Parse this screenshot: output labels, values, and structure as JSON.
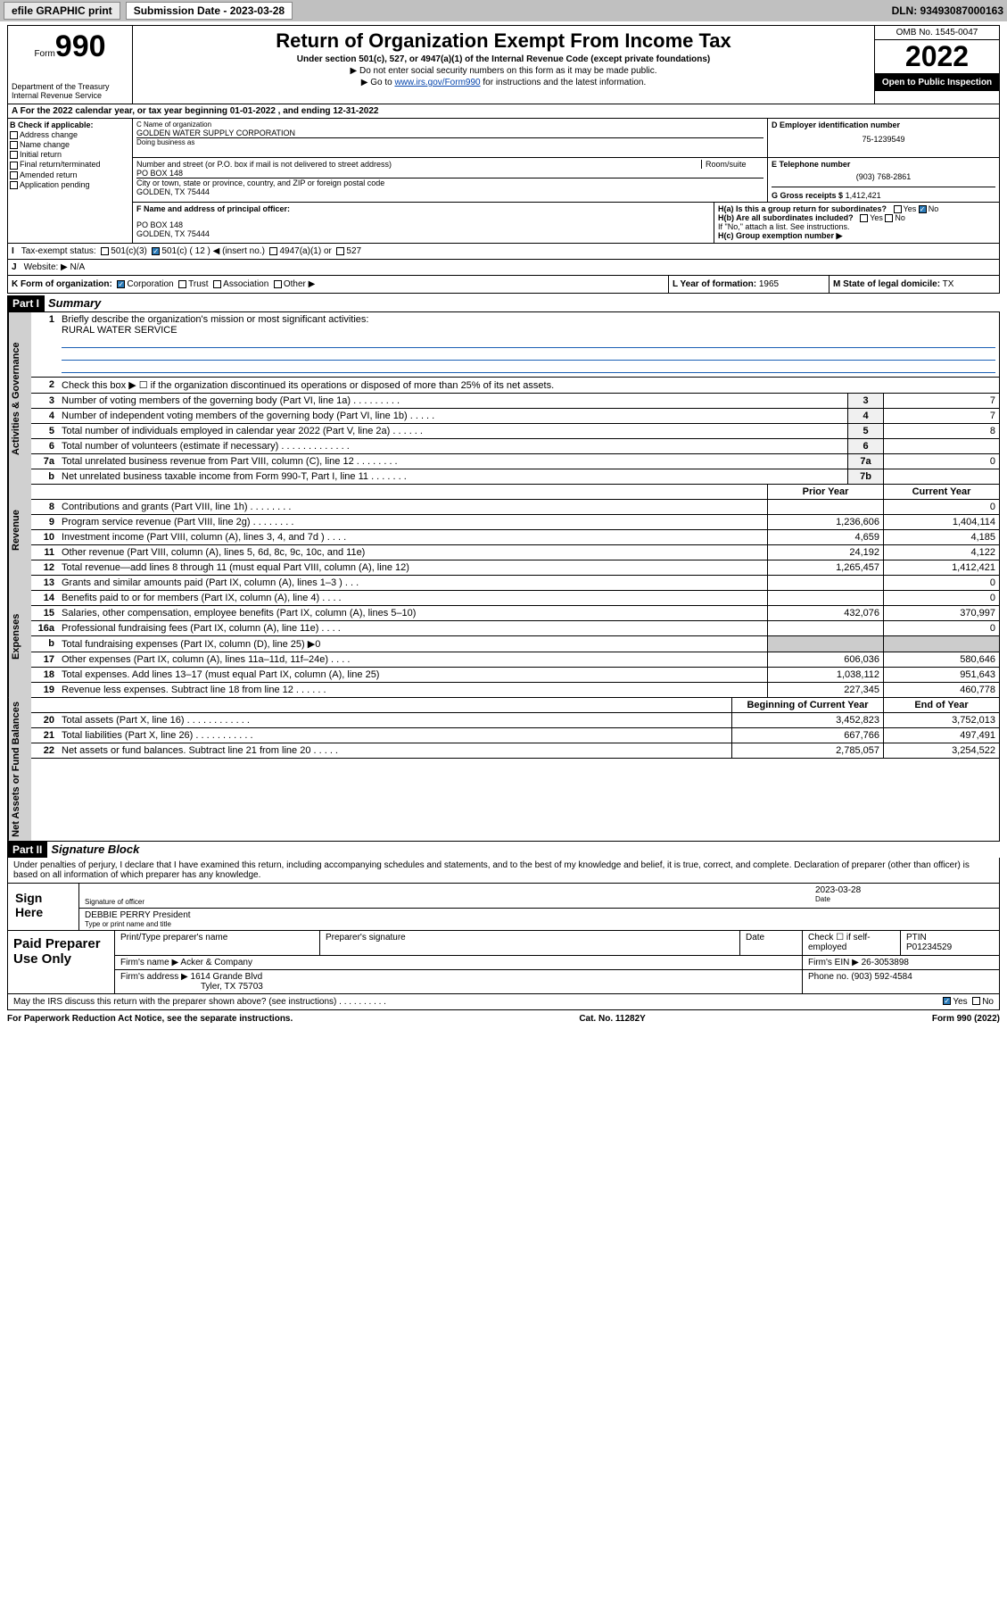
{
  "topbar": {
    "efile": "efile GRAPHIC print",
    "sub_label": "Submission Date - 2023-03-28",
    "dln": "DLN: 93493087000163"
  },
  "header": {
    "form_word": "Form",
    "form_num": "990",
    "dept": "Department of the Treasury\nInternal Revenue Service",
    "title": "Return of Organization Exempt From Income Tax",
    "sub1": "Under section 501(c), 527, or 4947(a)(1) of the Internal Revenue Code (except private foundations)",
    "sub2": "▶ Do not enter social security numbers on this form as it may be made public.",
    "sub3_pre": "▶ Go to ",
    "sub3_link": "www.irs.gov/Form990",
    "sub3_post": " for instructions and the latest information.",
    "omb": "OMB No. 1545-0047",
    "year": "2022",
    "otp": "Open to Public Inspection"
  },
  "line_a": "A For the 2022 calendar year, or tax year beginning 01-01-2022   , and ending 12-31-2022",
  "box_b": {
    "title": "B Check if applicable:",
    "items": [
      "Address change",
      "Name change",
      "Initial return",
      "Final return/terminated",
      "Amended return",
      "Application pending"
    ]
  },
  "box_c": {
    "name_lbl": "C Name of organization",
    "name": "GOLDEN WATER SUPPLY CORPORATION",
    "dba_lbl": "Doing business as",
    "addr_lbl": "Number and street (or P.O. box if mail is not delivered to street address)",
    "room_lbl": "Room/suite",
    "addr": "PO BOX 148",
    "city_lbl": "City or town, state or province, country, and ZIP or foreign postal code",
    "city": "GOLDEN, TX  75444"
  },
  "box_d": {
    "lbl": "D Employer identification number",
    "val": "75-1239549"
  },
  "box_e": {
    "lbl": "E Telephone number",
    "val": "(903) 768-2861"
  },
  "box_g": {
    "lbl": "G Gross receipts $",
    "val": "1,412,421"
  },
  "box_f": {
    "lbl": "F  Name and address of principal officer:",
    "l1": "PO BOX 148",
    "l2": "GOLDEN, TX  75444"
  },
  "box_h": {
    "a": "H(a)  Is this a group return for subordinates?",
    "b": "H(b)  Are all subordinates included?",
    "note": "If \"No,\" attach a list. See instructions.",
    "c": "H(c)  Group exemption number ▶",
    "yes": "Yes",
    "no": "No"
  },
  "row_i": {
    "lbl": "I",
    "txt": "Tax-exempt status:",
    "o1": "501(c)(3)",
    "o2": "501(c) ( 12 ) ◀ (insert no.)",
    "o3": "4947(a)(1) or",
    "o4": "527"
  },
  "row_j": {
    "lbl": "J",
    "txt": "Website: ▶",
    "val": "N/A"
  },
  "row_k": {
    "lbl": "K Form of organization:",
    "o1": "Corporation",
    "o2": "Trust",
    "o3": "Association",
    "o4": "Other ▶"
  },
  "row_l": {
    "lbl": "L Year of formation:",
    "val": "1965"
  },
  "row_m": {
    "lbl": "M State of legal domicile:",
    "val": "TX"
  },
  "parts": {
    "p1": "Part I",
    "p1t": "Summary",
    "p2": "Part II",
    "p2t": "Signature Block"
  },
  "summary": {
    "q1": "Briefly describe the organization's mission or most significant activities:",
    "q1v": "RURAL WATER SERVICE",
    "q2": "Check this box ▶ ☐  if the organization discontinued its operations or disposed of more than 25% of its net assets.",
    "q3": "Number of voting members of the governing body (Part VI, line 1a)   .    .    .    .    .    .    .    .    .",
    "q4": "Number of independent voting members of the governing body (Part VI, line 1b)   .    .    .    .    .",
    "q5": "Total number of individuals employed in calendar year 2022 (Part V, line 2a)   .    .    .    .    .    .",
    "q6": "Total number of volunteers (estimate if necessary)   .    .    .    .    .    .    .    .    .    .    .    .    .",
    "q7a": "Total unrelated business revenue from Part VIII, column (C), line 12   .    .    .    .    .    .    .    .",
    "q7b": "Net unrelated business taxable income from Form 990-T, Part I, line 11   .    .    .    .    .    .    .",
    "v3": "7",
    "v4": "7",
    "v5": "8",
    "v6": "",
    "v7a": "0",
    "v7b": "",
    "hdr_py": "Prior Year",
    "hdr_cy": "Current Year",
    "rows_rev": [
      {
        "n": "8",
        "t": "Contributions and grants (Part VIII, line 1h)   .    .    .    .    .    .    .    .",
        "py": "",
        "cy": "0"
      },
      {
        "n": "9",
        "t": "Program service revenue (Part VIII, line 2g)   .    .    .    .    .    .    .    .",
        "py": "1,236,606",
        "cy": "1,404,114"
      },
      {
        "n": "10",
        "t": "Investment income (Part VIII, column (A), lines 3, 4, and 7d )   .    .    .    .",
        "py": "4,659",
        "cy": "4,185"
      },
      {
        "n": "11",
        "t": "Other revenue (Part VIII, column (A), lines 5, 6d, 8c, 9c, 10c, and 11e)",
        "py": "24,192",
        "cy": "4,122"
      },
      {
        "n": "12",
        "t": "Total revenue—add lines 8 through 11 (must equal Part VIII, column (A), line 12)",
        "py": "1,265,457",
        "cy": "1,412,421"
      }
    ],
    "rows_exp": [
      {
        "n": "13",
        "t": "Grants and similar amounts paid (Part IX, column (A), lines 1–3 )   .    .    .",
        "py": "",
        "cy": "0"
      },
      {
        "n": "14",
        "t": "Benefits paid to or for members (Part IX, column (A), line 4)   .    .    .    .",
        "py": "",
        "cy": "0"
      },
      {
        "n": "15",
        "t": "Salaries, other compensation, employee benefits (Part IX, column (A), lines 5–10)",
        "py": "432,076",
        "cy": "370,997"
      },
      {
        "n": "16a",
        "t": "Professional fundraising fees (Part IX, column (A), line 11e)   .    .    .    .",
        "py": "",
        "cy": "0"
      },
      {
        "n": "b",
        "t": "Total fundraising expenses (Part IX, column (D), line 25) ▶0",
        "py": "—",
        "cy": "—"
      },
      {
        "n": "17",
        "t": "Other expenses (Part IX, column (A), lines 11a–11d, 11f–24e)   .    .    .    .",
        "py": "606,036",
        "cy": "580,646"
      },
      {
        "n": "18",
        "t": "Total expenses. Add lines 13–17 (must equal Part IX, column (A), line 25)",
        "py": "1,038,112",
        "cy": "951,643"
      },
      {
        "n": "19",
        "t": "Revenue less expenses. Subtract line 18 from line 12   .    .    .    .    .    .",
        "py": "227,345",
        "cy": "460,778"
      }
    ],
    "hdr_by": "Beginning of Current Year",
    "hdr_ey": "End of Year",
    "rows_na": [
      {
        "n": "20",
        "t": "Total assets (Part X, line 16)   .    .    .    .    .    .    .    .    .    .    .    .",
        "py": "3,452,823",
        "cy": "3,752,013"
      },
      {
        "n": "21",
        "t": "Total liabilities (Part X, line 26)   .    .    .    .    .    .    .    .    .    .    .",
        "py": "667,766",
        "cy": "497,491"
      },
      {
        "n": "22",
        "t": "Net assets or fund balances. Subtract line 21 from line 20   .    .    .    .    .",
        "py": "2,785,057",
        "cy": "3,254,522"
      }
    ],
    "side1": "Activities & Governance",
    "side2": "Revenue",
    "side3": "Expenses",
    "side4": "Net Assets or Fund Balances"
  },
  "sig": {
    "dec": "Under penalties of perjury, I declare that I have examined this return, including accompanying schedules and statements, and to the best of my knowledge and belief, it is true, correct, and complete. Declaration of preparer (other than officer) is based on all information of which preparer has any knowledge.",
    "sign_here": "Sign Here",
    "sig_off": "Signature of officer",
    "date": "Date",
    "date_v": "2023-03-28",
    "name": "DEBBIE PERRY President",
    "name_lbl": "Type or print name and title",
    "paid": "Paid Preparer Use Only",
    "h1": "Print/Type preparer's name",
    "h2": "Preparer's signature",
    "h3": "Date",
    "h4": "Check ☐ if self-employed",
    "h5": "PTIN",
    "ptin": "P01234529",
    "firm_lbl": "Firm's name    ▶",
    "firm": "Acker & Company",
    "ein_lbl": "Firm's EIN ▶",
    "ein": "26-3053898",
    "addr_lbl": "Firm's address ▶",
    "addr1": "1614 Grande Blvd",
    "addr2": "Tyler, TX  75703",
    "ph_lbl": "Phone no.",
    "ph": "(903) 592-4584",
    "may": "May the IRS discuss this return with the preparer shown above? (see instructions)   .    .    .    .    .    .    .    .    .    .",
    "yes": "Yes",
    "no": "No"
  },
  "foot": {
    "l": "For Paperwork Reduction Act Notice, see the separate instructions.",
    "c": "Cat. No. 11282Y",
    "r": "Form 990 (2022)"
  }
}
